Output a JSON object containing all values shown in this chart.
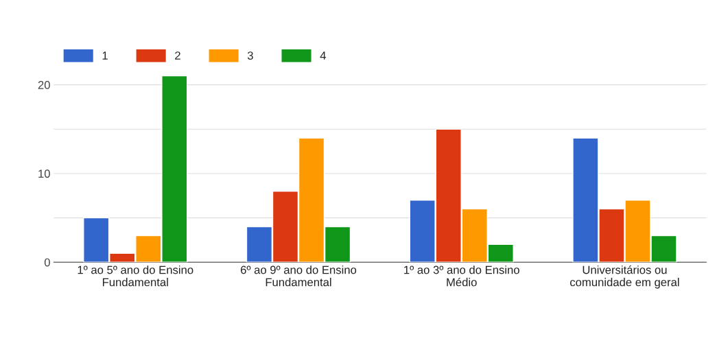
{
  "chart_data": {
    "type": "bar",
    "categories": [
      "1º ao 5º ano do Ensino\nFundamental",
      "6º ao 9º ano do Ensino\nFundamental",
      "1º ao 3º ano do Ensino\nMédio",
      "Universitários ou\ncomunidade em geral"
    ],
    "series": [
      {
        "name": "1",
        "color": "#3366cc",
        "values": [
          5,
          4,
          7,
          14
        ]
      },
      {
        "name": "2",
        "color": "#dc3912",
        "values": [
          1,
          8,
          15,
          6
        ]
      },
      {
        "name": "3",
        "color": "#ff9900",
        "values": [
          3,
          14,
          6,
          7
        ]
      },
      {
        "name": "4",
        "color": "#109618",
        "values": [
          21,
          4,
          2,
          3
        ]
      }
    ],
    "ylim": [
      0,
      21
    ],
    "yticks": [
      0,
      {
        "value": 5,
        "label": null
      },
      10,
      {
        "value": 15,
        "label": null
      },
      20
    ],
    "grid": "y",
    "legend": "top left"
  }
}
